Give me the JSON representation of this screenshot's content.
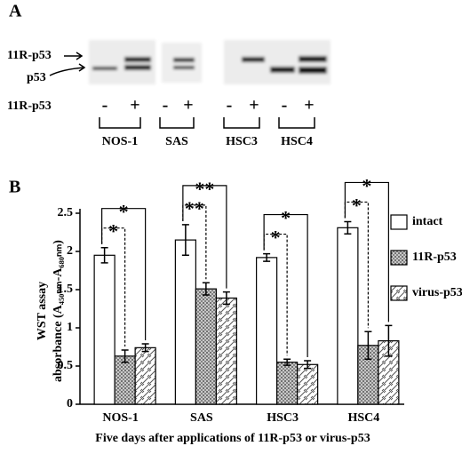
{
  "panel_a": {
    "label": "A",
    "band_labels": [
      "11R-p53",
      "p53"
    ],
    "row_label": "11R-p53",
    "lanes": [
      "-",
      "+",
      "-",
      "+",
      "-",
      "+",
      "-",
      "+"
    ],
    "groups": [
      "NOS-1",
      "SAS",
      "HSC3",
      "HSC4"
    ]
  },
  "chart_data": {
    "type": "bar",
    "panel_label": "B",
    "x_label": "Five days after applications of 11R-p53 or virus-p53",
    "y_label": [
      "WST assay",
      "absorbance (A₄₅₀ₙₘ-A₆₈₀ₙₘ)"
    ],
    "categories": [
      "NOS-1",
      "SAS",
      "HSC3",
      "HSC4"
    ],
    "series": [
      {
        "name": "intact",
        "color": "#ffffff",
        "pattern": "none",
        "values": [
          1.95,
          2.15,
          1.92,
          2.31
        ],
        "errors": [
          0.1,
          0.2,
          0.05,
          0.08
        ]
      },
      {
        "name": "11R-p53",
        "color": "#b8b8b8",
        "pattern": "dots",
        "values": [
          0.63,
          1.51,
          0.55,
          0.77
        ],
        "errors": [
          0.08,
          0.08,
          0.04,
          0.18
        ]
      },
      {
        "name": "virus-p53",
        "color": "#ffffff",
        "pattern": "diagonal",
        "values": [
          0.74,
          1.39,
          0.52,
          0.83
        ],
        "errors": [
          0.05,
          0.08,
          0.05,
          0.2
        ]
      }
    ],
    "significance": [
      [
        "*",
        "*"
      ],
      [
        "**",
        "**"
      ],
      [
        "*",
        "*"
      ],
      [
        "*",
        "*"
      ]
    ],
    "ylim": [
      0,
      2.5
    ],
    "yticks": [
      0,
      0.5,
      1,
      1.5,
      2,
      2.5
    ],
    "grid": false,
    "legend": "right"
  }
}
